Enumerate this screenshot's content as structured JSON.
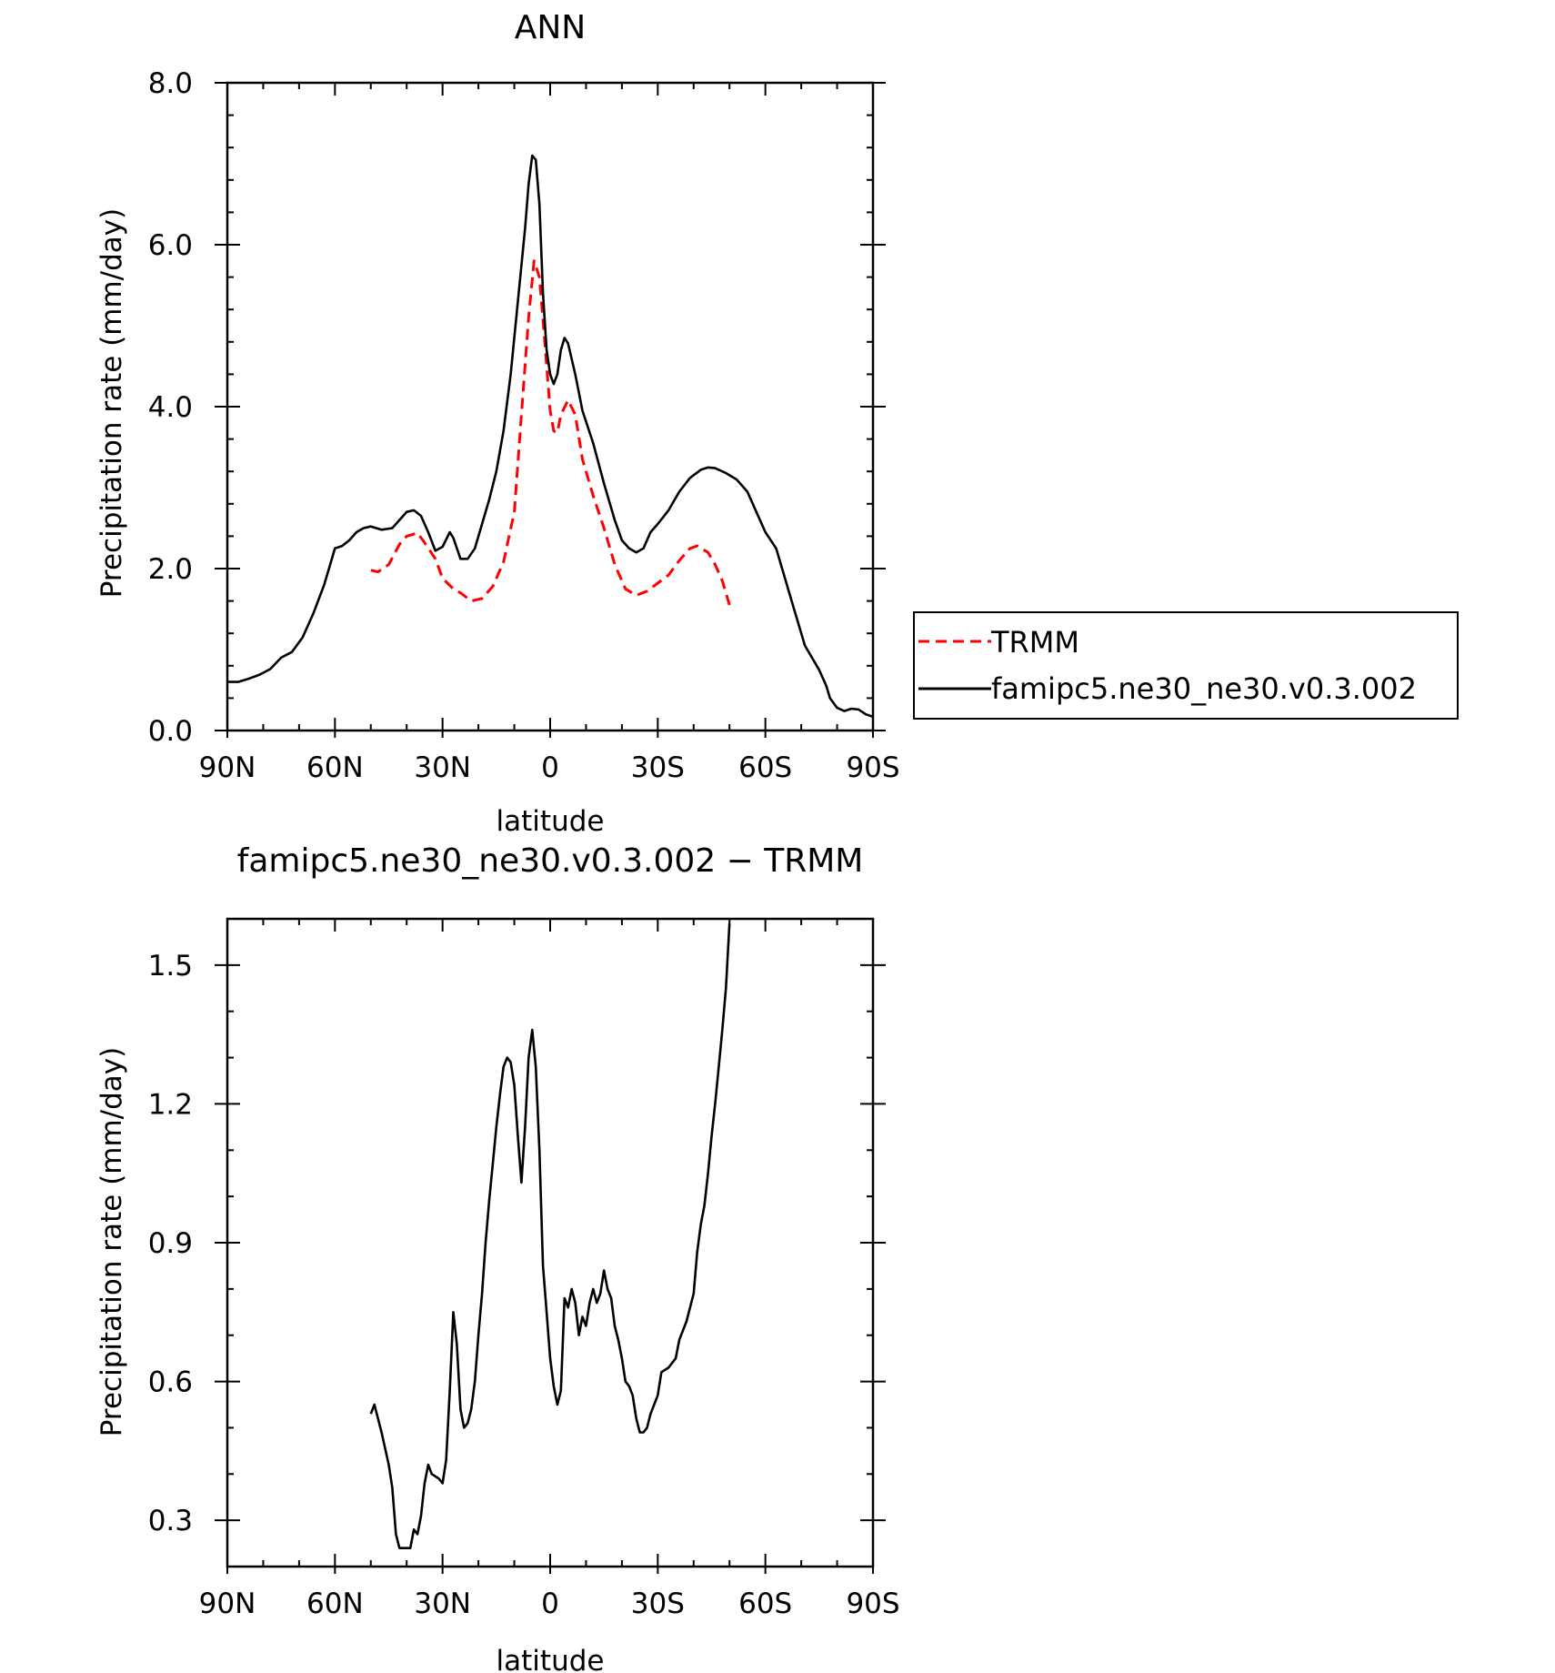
{
  "chart_data": [
    {
      "type": "line",
      "title": "ANN",
      "xlabel": "latitude",
      "ylabel": "Precipitation rate (mm/day)",
      "xlim": [
        90,
        -90
      ],
      "ylim": [
        0.0,
        8.0
      ],
      "xticks": [
        {
          "value": 90,
          "label": "90N"
        },
        {
          "value": 60,
          "label": "60N"
        },
        {
          "value": 30,
          "label": "30N"
        },
        {
          "value": 0,
          "label": "0"
        },
        {
          "value": -30,
          "label": "30S"
        },
        {
          "value": -60,
          "label": "60S"
        },
        {
          "value": -90,
          "label": "90S"
        }
      ],
      "yticks": [
        {
          "value": 0.0,
          "label": "0.0"
        },
        {
          "value": 2.0,
          "label": "2.0"
        },
        {
          "value": 4.0,
          "label": "4.0"
        },
        {
          "value": 6.0,
          "label": "6.0"
        },
        {
          "value": 8.0,
          "label": "8.0"
        }
      ],
      "legend": "outside-right",
      "series": [
        {
          "name": "TRMM",
          "color": "#ff0000",
          "dash": true,
          "points": [
            [
              50,
              1.98
            ],
            [
              48,
              1.96
            ],
            [
              45,
              2.05
            ],
            [
              42,
              2.3
            ],
            [
              40,
              2.4
            ],
            [
              37,
              2.44
            ],
            [
              35,
              2.32
            ],
            [
              32,
              2.12
            ],
            [
              30,
              1.88
            ],
            [
              27,
              1.75
            ],
            [
              25,
              1.7
            ],
            [
              22,
              1.6
            ],
            [
              19,
              1.63
            ],
            [
              16,
              1.78
            ],
            [
              13,
              2.08
            ],
            [
              10,
              2.7
            ],
            [
              8,
              3.9
            ],
            [
              6,
              5.1
            ],
            [
              4.5,
              5.8
            ],
            [
              3,
              5.6
            ],
            [
              1.5,
              4.8
            ],
            [
              0,
              3.95
            ],
            [
              -1,
              3.7
            ],
            [
              -2,
              3.68
            ],
            [
              -3,
              3.9
            ],
            [
              -5,
              4.08
            ],
            [
              -7,
              3.9
            ],
            [
              -9,
              3.35
            ],
            [
              -12,
              2.9
            ],
            [
              -15,
              2.5
            ],
            [
              -18,
              2.05
            ],
            [
              -21,
              1.75
            ],
            [
              -24,
              1.67
            ],
            [
              -27,
              1.72
            ],
            [
              -30,
              1.82
            ],
            [
              -33,
              1.92
            ],
            [
              -36,
              2.1
            ],
            [
              -39,
              2.25
            ],
            [
              -41,
              2.28
            ],
            [
              -44,
              2.2
            ],
            [
              -46,
              2.05
            ],
            [
              -48,
              1.85
            ],
            [
              -50,
              1.55
            ]
          ]
        },
        {
          "name": "famipc5.ne30_ne30.v0.3.002",
          "color": "#000000",
          "dash": false,
          "points": [
            [
              90,
              0.6
            ],
            [
              87,
              0.6
            ],
            [
              84,
              0.64
            ],
            [
              81,
              0.69
            ],
            [
              78,
              0.76
            ],
            [
              75,
              0.9
            ],
            [
              72,
              0.97
            ],
            [
              69,
              1.15
            ],
            [
              66,
              1.45
            ],
            [
              63,
              1.8
            ],
            [
              61,
              2.1
            ],
            [
              60,
              2.25
            ],
            [
              58,
              2.28
            ],
            [
              56,
              2.35
            ],
            [
              54,
              2.45
            ],
            [
              52,
              2.5
            ],
            [
              50,
              2.52
            ],
            [
              47,
              2.48
            ],
            [
              44,
              2.5
            ],
            [
              42,
              2.6
            ],
            [
              40,
              2.7
            ],
            [
              38,
              2.72
            ],
            [
              36,
              2.65
            ],
            [
              34,
              2.45
            ],
            [
              32,
              2.22
            ],
            [
              30,
              2.27
            ],
            [
              28,
              2.45
            ],
            [
              27,
              2.38
            ],
            [
              25,
              2.12
            ],
            [
              23,
              2.12
            ],
            [
              21,
              2.25
            ],
            [
              19,
              2.55
            ],
            [
              17,
              2.85
            ],
            [
              15,
              3.2
            ],
            [
              13,
              3.7
            ],
            [
              11,
              4.4
            ],
            [
              9,
              5.3
            ],
            [
              7,
              6.2
            ],
            [
              6,
              6.75
            ],
            [
              5,
              7.1
            ],
            [
              4,
              7.05
            ],
            [
              3,
              6.5
            ],
            [
              2,
              5.4
            ],
            [
              1,
              4.7
            ],
            [
              0,
              4.4
            ],
            [
              -1,
              4.28
            ],
            [
              -2,
              4.4
            ],
            [
              -3,
              4.7
            ],
            [
              -4,
              4.85
            ],
            [
              -5,
              4.78
            ],
            [
              -7,
              4.4
            ],
            [
              -9,
              3.95
            ],
            [
              -12,
              3.55
            ],
            [
              -15,
              3.05
            ],
            [
              -18,
              2.6
            ],
            [
              -20,
              2.35
            ],
            [
              -22,
              2.25
            ],
            [
              -24,
              2.2
            ],
            [
              -26,
              2.25
            ],
            [
              -28,
              2.45
            ],
            [
              -30,
              2.55
            ],
            [
              -33,
              2.72
            ],
            [
              -36,
              2.95
            ],
            [
              -39,
              3.12
            ],
            [
              -42,
              3.22
            ],
            [
              -44,
              3.25
            ],
            [
              -46,
              3.24
            ],
            [
              -49,
              3.18
            ],
            [
              -52,
              3.1
            ],
            [
              -55,
              2.95
            ],
            [
              -57,
              2.75
            ],
            [
              -60,
              2.45
            ],
            [
              -63,
              2.25
            ],
            [
              -65,
              1.95
            ],
            [
              -68,
              1.5
            ],
            [
              -71,
              1.05
            ],
            [
              -73,
              0.9
            ],
            [
              -75,
              0.75
            ],
            [
              -77,
              0.55
            ],
            [
              -78,
              0.4
            ],
            [
              -80,
              0.28
            ],
            [
              -82,
              0.24
            ],
            [
              -84,
              0.27
            ],
            [
              -86,
              0.26
            ],
            [
              -88,
              0.2
            ],
            [
              -90,
              0.17
            ]
          ]
        }
      ]
    },
    {
      "type": "line",
      "title": "famipc5.ne30_ne30.v0.3.002 − TRMM",
      "xlabel": "latitude",
      "ylabel": "Precipitation rate (mm/day)",
      "xlim": [
        90,
        -90
      ],
      "ylim": [
        0.2,
        1.6
      ],
      "xticks": [
        {
          "value": 90,
          "label": "90N"
        },
        {
          "value": 60,
          "label": "60N"
        },
        {
          "value": 30,
          "label": "30N"
        },
        {
          "value": 0,
          "label": "0"
        },
        {
          "value": -30,
          "label": "30S"
        },
        {
          "value": -60,
          "label": "60S"
        },
        {
          "value": -90,
          "label": "90S"
        }
      ],
      "yticks": [
        {
          "value": 0.3,
          "label": "0.3"
        },
        {
          "value": 0.6,
          "label": "0.6"
        },
        {
          "value": 0.9,
          "label": "0.9"
        },
        {
          "value": 1.2,
          "label": "1.2"
        },
        {
          "value": 1.5,
          "label": "1.5"
        }
      ],
      "series": [
        {
          "color": "#000000",
          "dash": false,
          "points": [
            [
              50,
              0.53
            ],
            [
              49,
              0.55
            ],
            [
              47,
              0.49
            ],
            [
              45,
              0.42
            ],
            [
              44,
              0.37
            ],
            [
              43,
              0.27
            ],
            [
              42,
              0.24
            ],
            [
              41,
              0.24
            ],
            [
              39,
              0.24
            ],
            [
              38,
              0.28
            ],
            [
              37,
              0.27
            ],
            [
              36,
              0.31
            ],
            [
              35,
              0.38
            ],
            [
              34,
              0.42
            ],
            [
              33,
              0.4
            ],
            [
              31,
              0.39
            ],
            [
              30,
              0.38
            ],
            [
              29,
              0.43
            ],
            [
              28,
              0.58
            ],
            [
              27,
              0.75
            ],
            [
              26,
              0.68
            ],
            [
              25,
              0.54
            ],
            [
              24,
              0.5
            ],
            [
              23,
              0.51
            ],
            [
              22,
              0.54
            ],
            [
              21,
              0.6
            ],
            [
              20,
              0.7
            ],
            [
              19,
              0.79
            ],
            [
              18,
              0.9
            ],
            [
              17,
              0.99
            ],
            [
              16,
              1.07
            ],
            [
              15,
              1.15
            ],
            [
              14,
              1.22
            ],
            [
              13,
              1.28
            ],
            [
              12,
              1.3
            ],
            [
              11,
              1.29
            ],
            [
              10,
              1.24
            ],
            [
              9,
              1.13
            ],
            [
              8,
              1.03
            ],
            [
              7,
              1.15
            ],
            [
              6,
              1.3
            ],
            [
              5,
              1.36
            ],
            [
              4,
              1.28
            ],
            [
              3,
              1.1
            ],
            [
              2,
              0.85
            ],
            [
              1,
              0.75
            ],
            [
              0,
              0.65
            ],
            [
              -1,
              0.59
            ],
            [
              -2,
              0.55
            ],
            [
              -3,
              0.58
            ],
            [
              -4,
              0.78
            ],
            [
              -5,
              0.76
            ],
            [
              -6,
              0.8
            ],
            [
              -7,
              0.77
            ],
            [
              -8,
              0.7
            ],
            [
              -9,
              0.74
            ],
            [
              -10,
              0.72
            ],
            [
              -11,
              0.77
            ],
            [
              -12,
              0.8
            ],
            [
              -13,
              0.77
            ],
            [
              -14,
              0.79
            ],
            [
              -15,
              0.84
            ],
            [
              -16,
              0.8
            ],
            [
              -17,
              0.78
            ],
            [
              -18,
              0.72
            ],
            [
              -19,
              0.69
            ],
            [
              -20,
              0.65
            ],
            [
              -21,
              0.6
            ],
            [
              -22,
              0.59
            ],
            [
              -23,
              0.57
            ],
            [
              -24,
              0.52
            ],
            [
              -25,
              0.49
            ],
            [
              -26,
              0.49
            ],
            [
              -27,
              0.5
            ],
            [
              -28,
              0.53
            ],
            [
              -30,
              0.57
            ],
            [
              -31,
              0.62
            ],
            [
              -33,
              0.63
            ],
            [
              -35,
              0.65
            ],
            [
              -36,
              0.69
            ],
            [
              -38,
              0.73
            ],
            [
              -40,
              0.79
            ],
            [
              -41,
              0.88
            ],
            [
              -42,
              0.94
            ],
            [
              -43,
              0.98
            ],
            [
              -44,
              1.05
            ],
            [
              -45,
              1.13
            ],
            [
              -46,
              1.2
            ],
            [
              -47,
              1.28
            ],
            [
              -48,
              1.36
            ],
            [
              -49,
              1.45
            ],
            [
              -50,
              1.59
            ]
          ]
        }
      ]
    }
  ]
}
